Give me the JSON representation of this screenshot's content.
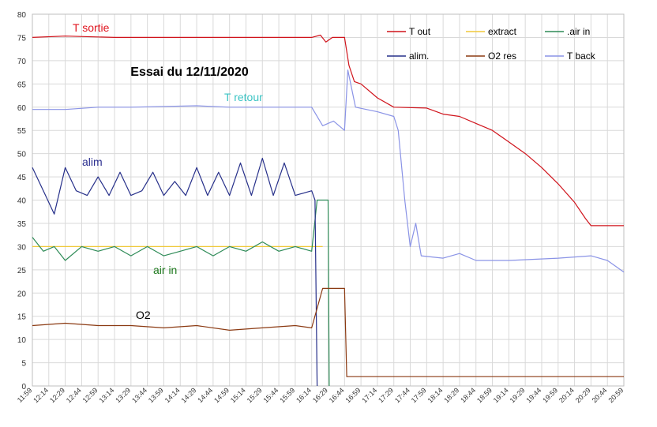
{
  "chart_data": {
    "type": "line",
    "title": "Essai du 12/11/2020",
    "xlabel": "",
    "ylabel": "",
    "ylim": [
      0,
      80
    ],
    "yticks": [
      0,
      5,
      10,
      15,
      20,
      25,
      30,
      35,
      40,
      45,
      50,
      55,
      60,
      65,
      70,
      75,
      80
    ],
    "grid": true,
    "legend_position": "top-right",
    "x_tick_labels": [
      "11:59",
      "12:14",
      "12:29",
      "12:44",
      "12:59",
      "13:14",
      "13:29",
      "13:44",
      "13:59",
      "14:14",
      "14:29",
      "14:44",
      "14:59",
      "15:14",
      "15:29",
      "15:44",
      "15:59",
      "16:14",
      "16:29",
      "16:44",
      "16:59",
      "17:14",
      "17:29",
      "17:44",
      "17:59",
      "18:14",
      "18:29",
      "18:44",
      "18:59",
      "19:14",
      "19:29",
      "19:44",
      "19:59",
      "20:14",
      "20:29",
      "20:44",
      "20:59"
    ],
    "annotations": [
      {
        "text": "T sortie",
        "series": "T out",
        "color": "#e0141e"
      },
      {
        "text": "T retour",
        "series": "T back",
        "color": "#3cc4c4"
      },
      {
        "text": "alim",
        "series": "alim.",
        "color": "#2b2f8f"
      },
      {
        "text": "air in",
        "series": ".air in",
        "color": "#1e7a1e"
      },
      {
        "text": "O2",
        "series": "O2 res",
        "color": "#000000"
      }
    ],
    "series": [
      {
        "name": "T out",
        "color": "#d0141c",
        "points": [
          [
            "11:59",
            75
          ],
          [
            "12:29",
            75.3
          ],
          [
            "13:14",
            75
          ],
          [
            "14:14",
            75
          ],
          [
            "15:14",
            75
          ],
          [
            "15:59",
            75
          ],
          [
            "16:14",
            75
          ],
          [
            "16:22",
            75.5
          ],
          [
            "16:27",
            74
          ],
          [
            "16:33",
            75
          ],
          [
            "16:44",
            75
          ],
          [
            "16:48",
            69
          ],
          [
            "16:53",
            65.5
          ],
          [
            "16:59",
            65
          ],
          [
            "17:14",
            62
          ],
          [
            "17:29",
            60
          ],
          [
            "17:59",
            59.8
          ],
          [
            "18:14",
            58.5
          ],
          [
            "18:29",
            58
          ],
          [
            "18:44",
            56.5
          ],
          [
            "18:59",
            55
          ],
          [
            "19:14",
            52.5
          ],
          [
            "19:29",
            50
          ],
          [
            "19:44",
            47
          ],
          [
            "19:59",
            43.5
          ],
          [
            "20:14",
            39.5
          ],
          [
            "20:24",
            36
          ],
          [
            "20:29",
            34.5
          ],
          [
            "20:59",
            34.5
          ]
        ]
      },
      {
        "name": "extract",
        "color": "#f0c93a",
        "points": [
          [
            "11:59",
            30
          ],
          [
            "16:24",
            30
          ]
        ]
      },
      {
        "name": ".air in",
        "color": "#2e8b57",
        "points": [
          [
            "11:59",
            32
          ],
          [
            "12:09",
            29
          ],
          [
            "12:19",
            30
          ],
          [
            "12:29",
            27
          ],
          [
            "12:44",
            30
          ],
          [
            "12:59",
            29
          ],
          [
            "13:14",
            30
          ],
          [
            "13:29",
            28
          ],
          [
            "13:44",
            30
          ],
          [
            "13:59",
            28
          ],
          [
            "14:14",
            29
          ],
          [
            "14:29",
            30
          ],
          [
            "14:44",
            28
          ],
          [
            "14:59",
            30
          ],
          [
            "15:14",
            29
          ],
          [
            "15:29",
            31
          ],
          [
            "15:44",
            29
          ],
          [
            "15:59",
            30
          ],
          [
            "16:14",
            29
          ],
          [
            "16:19",
            40
          ],
          [
            "16:29",
            40
          ],
          [
            "16:30",
            0
          ]
        ]
      },
      {
        "name": "alim.",
        "color": "#27308a",
        "points": [
          [
            "11:59",
            47
          ],
          [
            "12:09",
            42
          ],
          [
            "12:19",
            37
          ],
          [
            "12:29",
            47
          ],
          [
            "12:39",
            42
          ],
          [
            "12:49",
            41
          ],
          [
            "12:59",
            45
          ],
          [
            "13:09",
            41
          ],
          [
            "13:19",
            46
          ],
          [
            "13:29",
            41
          ],
          [
            "13:39",
            42
          ],
          [
            "13:49",
            46
          ],
          [
            "13:59",
            41
          ],
          [
            "14:09",
            44
          ],
          [
            "14:19",
            41
          ],
          [
            "14:29",
            47
          ],
          [
            "14:39",
            41
          ],
          [
            "14:49",
            46
          ],
          [
            "14:59",
            41
          ],
          [
            "15:09",
            48
          ],
          [
            "15:19",
            41
          ],
          [
            "15:29",
            49
          ],
          [
            "15:39",
            41
          ],
          [
            "15:49",
            48
          ],
          [
            "15:59",
            41
          ],
          [
            "16:14",
            42
          ],
          [
            "16:17",
            40
          ],
          [
            "16:19",
            0
          ]
        ]
      },
      {
        "name": "O2 res",
        "color": "#8b3a12",
        "points": [
          [
            "11:59",
            13
          ],
          [
            "12:29",
            13.5
          ],
          [
            "12:59",
            13
          ],
          [
            "13:29",
            13
          ],
          [
            "13:59",
            12.5
          ],
          [
            "14:29",
            13
          ],
          [
            "14:59",
            12
          ],
          [
            "15:29",
            12.5
          ],
          [
            "15:59",
            13
          ],
          [
            "16:14",
            12.5
          ],
          [
            "16:24",
            21
          ],
          [
            "16:44",
            21
          ],
          [
            "16:46",
            2
          ],
          [
            "20:59",
            2
          ]
        ]
      },
      {
        "name": "T back",
        "color": "#8a93e6",
        "points": [
          [
            "11:59",
            59.5
          ],
          [
            "12:29",
            59.5
          ],
          [
            "12:59",
            60
          ],
          [
            "13:29",
            60
          ],
          [
            "14:29",
            60.3
          ],
          [
            "14:59",
            60
          ],
          [
            "15:59",
            60
          ],
          [
            "16:14",
            60
          ],
          [
            "16:24",
            56
          ],
          [
            "16:34",
            57
          ],
          [
            "16:44",
            55
          ],
          [
            "16:47",
            68
          ],
          [
            "16:54",
            60
          ],
          [
            "17:14",
            59
          ],
          [
            "17:29",
            58
          ],
          [
            "17:33",
            55
          ],
          [
            "17:39",
            40
          ],
          [
            "17:44",
            30
          ],
          [
            "17:49",
            35
          ],
          [
            "17:54",
            28
          ],
          [
            "18:14",
            27.5
          ],
          [
            "18:29",
            28.5
          ],
          [
            "18:44",
            27
          ],
          [
            "19:14",
            27
          ],
          [
            "19:59",
            27.5
          ],
          [
            "20:29",
            28
          ],
          [
            "20:44",
            27
          ],
          [
            "20:59",
            24.5
          ]
        ]
      }
    ]
  }
}
